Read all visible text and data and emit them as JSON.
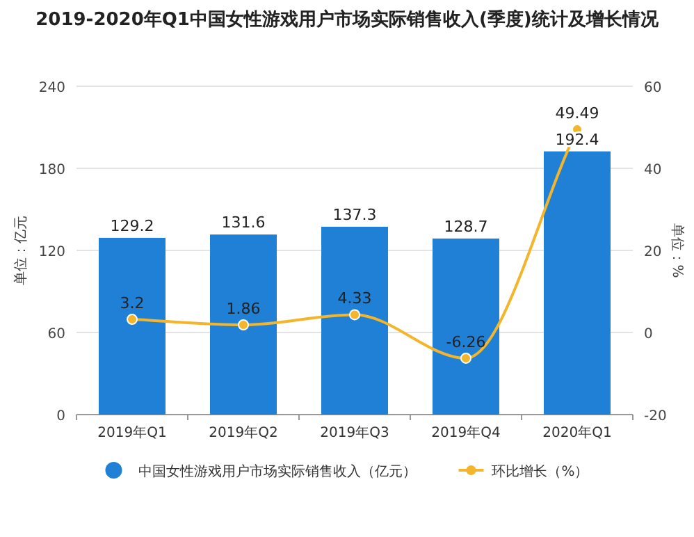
{
  "chart_data": {
    "type": "bar",
    "title": "2019-2020年Q1中国女性游戏用户市场实际销售收入(季度)统计及增长情况",
    "ylabel": "单位：亿元",
    "y2label": "单位：%",
    "categories": [
      "2019年Q1",
      "2019年Q2",
      "2019年Q3",
      "2019年Q4",
      "2020年Q1"
    ],
    "series": [
      {
        "name": "中国女性游戏用户市场实际销售收入（亿元）",
        "color": "#1f80d6",
        "values": [
          129.2,
          131.6,
          137.3,
          128.7,
          192.4
        ]
      },
      {
        "name": "环比增长（%）",
        "type": "line",
        "axis": "y2",
        "color": "#f2b52b",
        "marker": "circle",
        "values": [
          3.2,
          1.86,
          4.33,
          -6.26,
          49.49
        ]
      }
    ],
    "ylim": [
      0,
      240
    ],
    "yticks": [
      0,
      60,
      120,
      180,
      240
    ],
    "y2lim": [
      -20,
      60
    ],
    "y2ticks": [
      -20,
      0,
      20,
      40,
      60
    ],
    "grid": "y",
    "legend": "bottom",
    "data_labels": true
  }
}
